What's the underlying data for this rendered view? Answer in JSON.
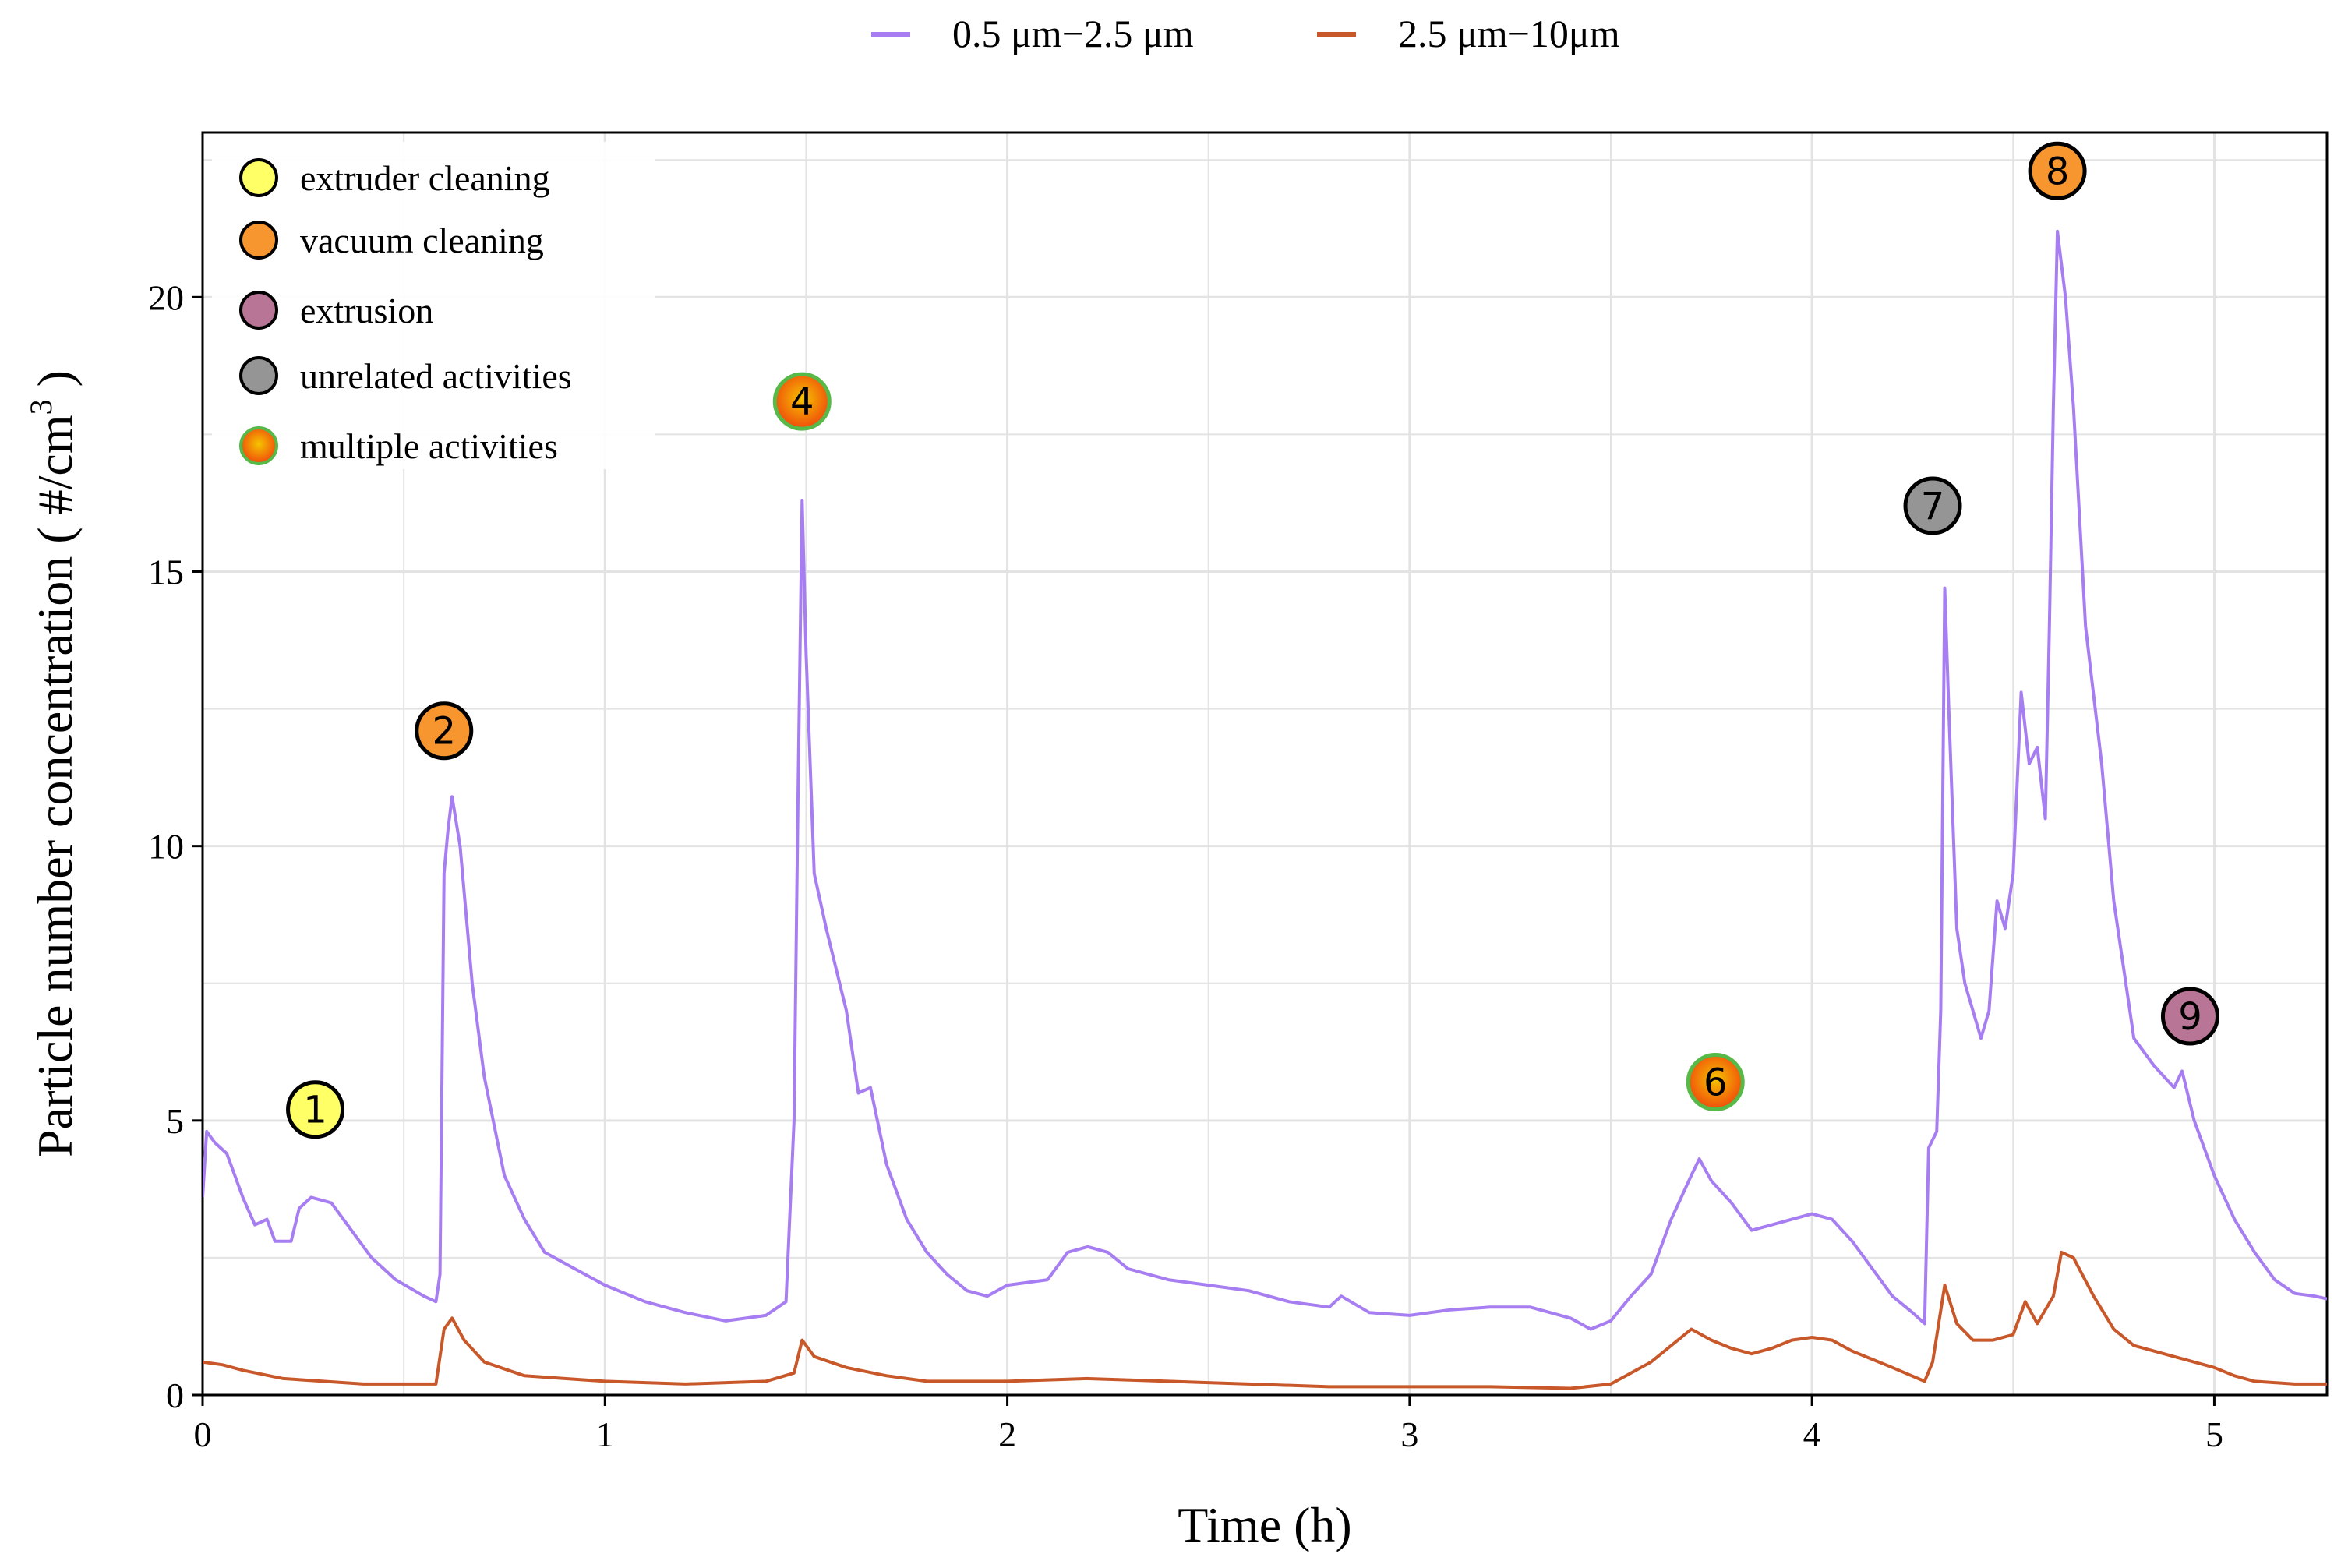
{
  "chart_data": {
    "type": "line",
    "title": "",
    "xlabel": "Time (h)",
    "ylabel": "Particle number concentration ( #/cm",
    "ylabel_superscript": "3",
    "ylabel_close": " )",
    "xlim": [
      0,
      5.28
    ],
    "ylim": [
      0,
      23
    ],
    "xticks": [
      0,
      1,
      2,
      3,
      4,
      5
    ],
    "xtick_labels": [
      "0",
      "1",
      "2",
      "3",
      "4",
      "5"
    ],
    "yticks": [
      0,
      5,
      10,
      15,
      20
    ],
    "ytick_labels": [
      "0",
      "5",
      "10",
      "15",
      "20"
    ],
    "grid": true,
    "legend_position": "top-center",
    "series": [
      {
        "name": "0.5 μm−2.5 μm",
        "color": "#a77ef1",
        "points": [
          [
            0,
            3.6
          ],
          [
            0.01,
            4.8
          ],
          [
            0.03,
            4.6
          ],
          [
            0.06,
            4.4
          ],
          [
            0.1,
            3.6
          ],
          [
            0.13,
            3.1
          ],
          [
            0.16,
            3.2
          ],
          [
            0.18,
            2.8
          ],
          [
            0.22,
            2.8
          ],
          [
            0.24,
            3.4
          ],
          [
            0.27,
            3.6
          ],
          [
            0.32,
            3.5
          ],
          [
            0.36,
            3.1
          ],
          [
            0.42,
            2.5
          ],
          [
            0.48,
            2.1
          ],
          [
            0.55,
            1.8
          ],
          [
            0.58,
            1.7
          ],
          [
            0.59,
            2.2
          ],
          [
            0.6,
            9.5
          ],
          [
            0.61,
            10.3
          ],
          [
            0.62,
            10.9
          ],
          [
            0.64,
            10.0
          ],
          [
            0.67,
            7.5
          ],
          [
            0.7,
            5.8
          ],
          [
            0.75,
            4.0
          ],
          [
            0.8,
            3.2
          ],
          [
            0.85,
            2.6
          ],
          [
            0.9,
            2.4
          ],
          [
            1.0,
            2.0
          ],
          [
            1.1,
            1.7
          ],
          [
            1.2,
            1.5
          ],
          [
            1.3,
            1.35
          ],
          [
            1.4,
            1.45
          ],
          [
            1.45,
            1.7
          ],
          [
            1.47,
            5.0
          ],
          [
            1.48,
            11.0
          ],
          [
            1.49,
            16.3
          ],
          [
            1.5,
            13.5
          ],
          [
            1.52,
            9.5
          ],
          [
            1.55,
            8.5
          ],
          [
            1.6,
            7.0
          ],
          [
            1.63,
            5.5
          ],
          [
            1.66,
            5.6
          ],
          [
            1.7,
            4.2
          ],
          [
            1.75,
            3.2
          ],
          [
            1.8,
            2.6
          ],
          [
            1.85,
            2.2
          ],
          [
            1.9,
            1.9
          ],
          [
            1.95,
            1.8
          ],
          [
            2.0,
            2.0
          ],
          [
            2.1,
            2.1
          ],
          [
            2.15,
            2.6
          ],
          [
            2.2,
            2.7
          ],
          [
            2.25,
            2.6
          ],
          [
            2.3,
            2.3
          ],
          [
            2.4,
            2.1
          ],
          [
            2.5,
            2.0
          ],
          [
            2.6,
            1.9
          ],
          [
            2.7,
            1.7
          ],
          [
            2.8,
            1.6
          ],
          [
            2.83,
            1.8
          ],
          [
            2.9,
            1.5
          ],
          [
            3.0,
            1.45
          ],
          [
            3.1,
            1.55
          ],
          [
            3.2,
            1.6
          ],
          [
            3.3,
            1.6
          ],
          [
            3.4,
            1.4
          ],
          [
            3.45,
            1.2
          ],
          [
            3.5,
            1.35
          ],
          [
            3.55,
            1.8
          ],
          [
            3.6,
            2.2
          ],
          [
            3.65,
            3.2
          ],
          [
            3.7,
            4.0
          ],
          [
            3.72,
            4.3
          ],
          [
            3.75,
            3.9
          ],
          [
            3.8,
            3.5
          ],
          [
            3.85,
            3.0
          ],
          [
            3.9,
            3.1
          ],
          [
            3.95,
            3.2
          ],
          [
            4.0,
            3.3
          ],
          [
            4.05,
            3.2
          ],
          [
            4.1,
            2.8
          ],
          [
            4.15,
            2.3
          ],
          [
            4.2,
            1.8
          ],
          [
            4.25,
            1.5
          ],
          [
            4.28,
            1.3
          ],
          [
            4.29,
            4.5
          ],
          [
            4.31,
            4.8
          ],
          [
            4.32,
            7.0
          ],
          [
            4.33,
            14.7
          ],
          [
            4.34,
            12.5
          ],
          [
            4.36,
            8.5
          ],
          [
            4.38,
            7.5
          ],
          [
            4.4,
            7.0
          ],
          [
            4.42,
            6.5
          ],
          [
            4.44,
            7.0
          ],
          [
            4.46,
            9.0
          ],
          [
            4.48,
            8.5
          ],
          [
            4.5,
            9.5
          ],
          [
            4.52,
            12.8
          ],
          [
            4.54,
            11.5
          ],
          [
            4.56,
            11.8
          ],
          [
            4.58,
            10.5
          ],
          [
            4.59,
            14.0
          ],
          [
            4.6,
            18.0
          ],
          [
            4.61,
            21.2
          ],
          [
            4.63,
            20.0
          ],
          [
            4.65,
            18.0
          ],
          [
            4.68,
            14.0
          ],
          [
            4.72,
            11.5
          ],
          [
            4.75,
            9.0
          ],
          [
            4.78,
            7.5
          ],
          [
            4.8,
            6.5
          ],
          [
            4.85,
            6.0
          ],
          [
            4.9,
            5.6
          ],
          [
            4.92,
            5.9
          ],
          [
            4.95,
            5.0
          ],
          [
            5.0,
            4.0
          ],
          [
            5.05,
            3.2
          ],
          [
            5.1,
            2.6
          ],
          [
            5.15,
            2.1
          ],
          [
            5.2,
            1.85
          ],
          [
            5.25,
            1.8
          ],
          [
            5.28,
            1.75
          ]
        ]
      },
      {
        "name": "2.5 μm−10μm",
        "color": "#c8582a",
        "points": [
          [
            0,
            0.6
          ],
          [
            0.05,
            0.55
          ],
          [
            0.1,
            0.45
          ],
          [
            0.2,
            0.3
          ],
          [
            0.3,
            0.25
          ],
          [
            0.4,
            0.2
          ],
          [
            0.5,
            0.2
          ],
          [
            0.58,
            0.2
          ],
          [
            0.6,
            1.2
          ],
          [
            0.62,
            1.4
          ],
          [
            0.65,
            1.0
          ],
          [
            0.7,
            0.6
          ],
          [
            0.8,
            0.35
          ],
          [
            0.9,
            0.3
          ],
          [
            1.0,
            0.25
          ],
          [
            1.2,
            0.2
          ],
          [
            1.4,
            0.25
          ],
          [
            1.47,
            0.4
          ],
          [
            1.49,
            1.0
          ],
          [
            1.52,
            0.7
          ],
          [
            1.6,
            0.5
          ],
          [
            1.7,
            0.35
          ],
          [
            1.8,
            0.25
          ],
          [
            2.0,
            0.25
          ],
          [
            2.2,
            0.3
          ],
          [
            2.4,
            0.25
          ],
          [
            2.6,
            0.2
          ],
          [
            2.8,
            0.15
          ],
          [
            3.0,
            0.15
          ],
          [
            3.2,
            0.15
          ],
          [
            3.4,
            0.12
          ],
          [
            3.5,
            0.2
          ],
          [
            3.6,
            0.6
          ],
          [
            3.7,
            1.2
          ],
          [
            3.75,
            1.0
          ],
          [
            3.8,
            0.85
          ],
          [
            3.85,
            0.75
          ],
          [
            3.9,
            0.85
          ],
          [
            3.95,
            1.0
          ],
          [
            4.0,
            1.05
          ],
          [
            4.05,
            1.0
          ],
          [
            4.1,
            0.8
          ],
          [
            4.2,
            0.5
          ],
          [
            4.28,
            0.25
          ],
          [
            4.3,
            0.6
          ],
          [
            4.33,
            2.0
          ],
          [
            4.36,
            1.3
          ],
          [
            4.4,
            1.0
          ],
          [
            4.45,
            1.0
          ],
          [
            4.5,
            1.1
          ],
          [
            4.53,
            1.7
          ],
          [
            4.56,
            1.3
          ],
          [
            4.6,
            1.8
          ],
          [
            4.62,
            2.6
          ],
          [
            4.65,
            2.5
          ],
          [
            4.7,
            1.8
          ],
          [
            4.75,
            1.2
          ],
          [
            4.8,
            0.9
          ],
          [
            4.9,
            0.7
          ],
          [
            5.0,
            0.5
          ],
          [
            5.05,
            0.35
          ],
          [
            5.1,
            0.25
          ],
          [
            5.2,
            0.2
          ],
          [
            5.28,
            0.2
          ]
        ]
      }
    ],
    "annotations": [
      {
        "label": "1",
        "x": 0.28,
        "y": 5.2,
        "category": "extruder-cleaning"
      },
      {
        "label": "2",
        "x": 0.6,
        "y": 12.1,
        "category": "vacuum-cleaning"
      },
      {
        "label": "4",
        "x": 1.49,
        "y": 18.1,
        "category": "multiple-activities"
      },
      {
        "label": "6",
        "x": 3.76,
        "y": 5.7,
        "category": "multiple-activities"
      },
      {
        "label": "7",
        "x": 4.3,
        "y": 16.2,
        "category": "unrelated-activities"
      },
      {
        "label": "8",
        "x": 4.61,
        "y": 22.3,
        "category": "vacuum-cleaning"
      },
      {
        "label": "9",
        "x": 4.94,
        "y": 6.9,
        "category": "extrusion"
      }
    ],
    "activity_legend": [
      {
        "key": "extruder-cleaning",
        "label": "extruder cleaning",
        "fill": "#ffff66"
      },
      {
        "key": "vacuum-cleaning",
        "label": "vacuum cleaning",
        "fill": "#f7962f"
      },
      {
        "key": "extrusion",
        "label": "extrusion",
        "fill": "#b87595"
      },
      {
        "key": "unrelated-activities",
        "label": "unrelated activities",
        "fill": "#959595"
      },
      {
        "key": "multiple-activities",
        "label": "multiple activities",
        "fill": "gradient"
      }
    ]
  },
  "colors": {
    "grid": "#e3e3e3",
    "axis": "#000000",
    "gradient_outer": "#f04b0b",
    "gradient_inner": "#f5c400",
    "gradient_ring": "#57b947"
  }
}
